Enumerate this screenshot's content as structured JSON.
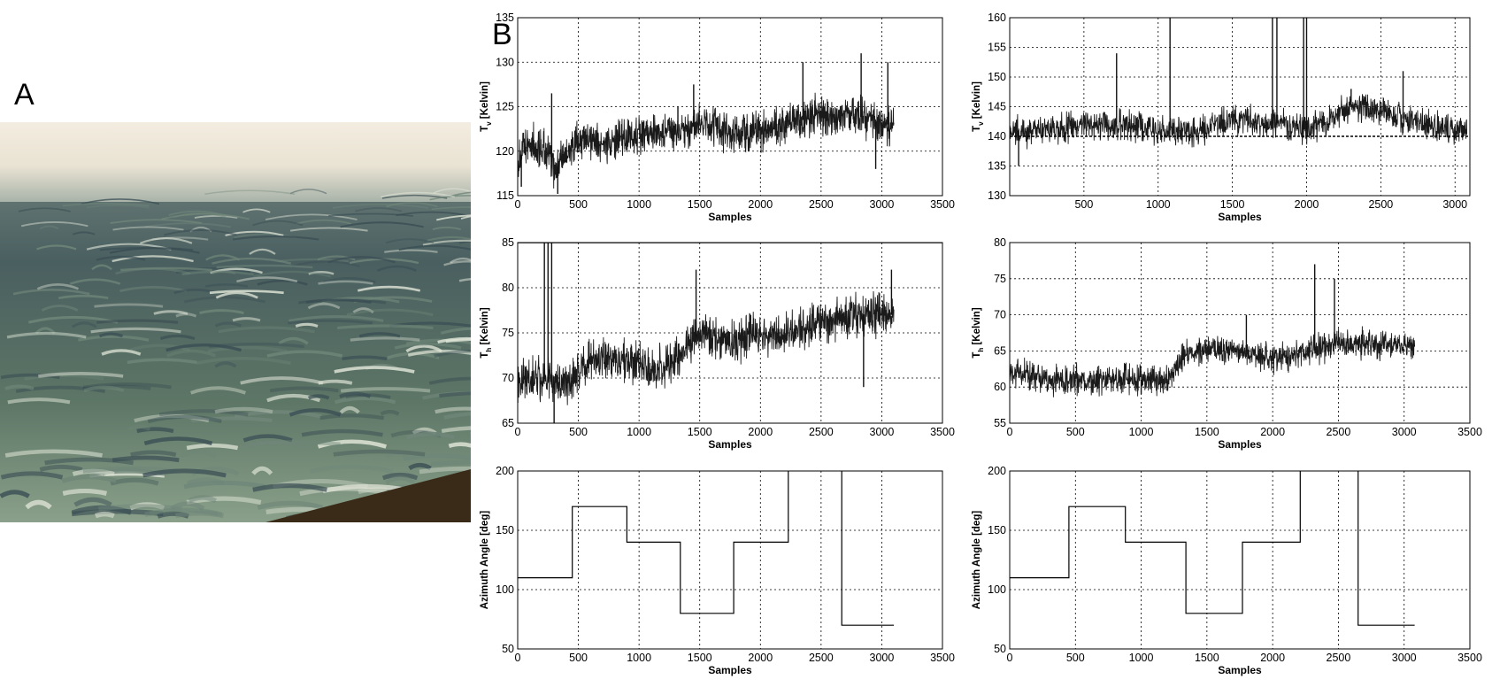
{
  "labels": {
    "panel_a": "A",
    "panel_b": "B"
  },
  "photo": {
    "sky": "#efe7dc",
    "sea_dark": "#3a4e54",
    "sea_mid": "#6f8679",
    "foam": "#dfe4d6",
    "frame": "#3a2a18"
  },
  "chart_data": [
    {
      "id": "tv-left",
      "type": "line",
      "xlabel": "Samples",
      "ylabel": "T",
      "ylabel_sub": "v",
      "ylabel_unit": " [Kelvin]",
      "xlim": [
        0,
        3500
      ],
      "ylim": [
        115,
        135
      ],
      "xticks": [
        0,
        500,
        1000,
        1500,
        2000,
        2500,
        3000,
        3500
      ],
      "yticks": [
        115,
        120,
        125,
        130,
        135
      ],
      "series": [
        {
          "kind": "noise",
          "n": 3100,
          "x_start": 0,
          "x_end": 3100,
          "amp": 1.8,
          "trend_x": [
            0,
            100,
            250,
            300,
            500,
            800,
            1000,
            1300,
            1500,
            1800,
            2000,
            2200,
            2500,
            2800,
            3000,
            3100
          ],
          "trend_y": [
            119,
            121,
            120,
            118,
            121,
            121,
            122,
            122,
            123,
            122,
            122,
            123,
            124,
            124,
            123,
            123
          ],
          "spikes": [
            [
              30,
              116
            ],
            [
              280,
              126.5
            ],
            [
              330,
              115.2
            ],
            [
              1320,
              125
            ],
            [
              1450,
              127.5
            ],
            [
              2350,
              130
            ],
            [
              2830,
              131
            ],
            [
              3050,
              130
            ],
            [
              2950,
              118
            ]
          ]
        }
      ],
      "hlines": []
    },
    {
      "id": "tv-right",
      "type": "line",
      "xlabel": "Samples",
      "ylabel": "T",
      "ylabel_sub": "v",
      "ylabel_unit": " [Kelvin]",
      "xlim": [
        0,
        3100
      ],
      "ylim": [
        130,
        160
      ],
      "xticks": [
        500,
        1000,
        1500,
        2000,
        2500,
        3000
      ],
      "yticks": [
        130,
        135,
        140,
        145,
        150,
        155,
        160
      ],
      "series": [
        {
          "kind": "noise",
          "n": 3080,
          "x_start": 0,
          "x_end": 3080,
          "amp": 2.0,
          "trend_x": [
            0,
            300,
            500,
            800,
            1000,
            1300,
            1500,
            1800,
            2000,
            2300,
            2500,
            2800,
            3000,
            3080
          ],
          "trend_y": [
            141,
            141,
            142,
            142,
            141,
            141,
            143,
            142,
            141,
            145,
            144,
            142,
            141,
            141
          ],
          "spikes": [
            [
              60,
              135
            ],
            [
              720,
              154
            ],
            [
              1080,
              160
            ],
            [
              1770,
              160
            ],
            [
              1800,
              160
            ],
            [
              1980,
              160
            ],
            [
              2000,
              160
            ],
            [
              2300,
              148
            ],
            [
              2650,
              151
            ]
          ]
        }
      ],
      "hlines": [
        140
      ]
    },
    {
      "id": "th-left",
      "type": "line",
      "xlabel": "Samples",
      "ylabel": "T",
      "ylabel_sub": "h",
      "ylabel_unit": " [Kelvin]",
      "xlim": [
        0,
        3500
      ],
      "ylim": [
        65,
        85
      ],
      "xticks": [
        0,
        500,
        1000,
        1500,
        2000,
        2500,
        3000,
        3500
      ],
      "yticks": [
        65,
        70,
        75,
        80,
        85
      ],
      "series": [
        {
          "kind": "noise",
          "n": 3100,
          "x_start": 0,
          "x_end": 3100,
          "amp": 1.8,
          "trend_x": [
            0,
            200,
            400,
            600,
            900,
            1100,
            1300,
            1500,
            1800,
            2000,
            2200,
            2500,
            2800,
            3000,
            3100
          ],
          "trend_y": [
            70,
            70,
            69,
            72,
            72,
            71,
            72,
            75,
            74,
            75,
            75,
            76,
            77,
            77,
            77
          ],
          "spikes": [
            [
              220,
              85
            ],
            [
              250,
              85
            ],
            [
              280,
              85
            ],
            [
              300,
              65
            ],
            [
              1470,
              82
            ],
            [
              2850,
              69
            ],
            [
              3080,
              82
            ]
          ]
        }
      ],
      "hlines": [
        85
      ]
    },
    {
      "id": "th-right",
      "type": "line",
      "xlabel": "Samples",
      "ylabel": "T",
      "ylabel_sub": "h",
      "ylabel_unit": " [Kelvin]",
      "xlim": [
        0,
        3500
      ],
      "ylim": [
        55,
        80
      ],
      "xticks": [
        0,
        500,
        1000,
        1500,
        2000,
        2500,
        3000,
        3500
      ],
      "yticks": [
        55,
        60,
        65,
        70,
        75,
        80
      ],
      "series": [
        {
          "kind": "noise",
          "n": 3080,
          "x_start": 0,
          "x_end": 3080,
          "amp": 1.6,
          "trend_x": [
            0,
            300,
            600,
            900,
            1200,
            1350,
            1500,
            1800,
            2000,
            2300,
            2500,
            2800,
            3080
          ],
          "trend_y": [
            62,
            61,
            61,
            61,
            61,
            65,
            65,
            65,
            64,
            65,
            66,
            66,
            66
          ],
          "spikes": [
            [
              2320,
              77
            ],
            [
              2470,
              75
            ],
            [
              1800,
              70
            ],
            [
              1000,
              59
            ]
          ]
        }
      ],
      "hlines": []
    },
    {
      "id": "az-left",
      "type": "line",
      "xlabel": "Samples",
      "ylabel": "Azimuth Angle [deg]",
      "ylabel_sub": "",
      "ylabel_unit": "",
      "xlim": [
        0,
        3500
      ],
      "ylim": [
        50,
        200
      ],
      "xticks": [
        0,
        500,
        1000,
        1500,
        2000,
        2500,
        3000,
        3500
      ],
      "yticks": [
        50,
        100,
        150,
        200
      ],
      "series": [
        {
          "kind": "step",
          "x": [
            0,
            450,
            450,
            900,
            900,
            1340,
            1340,
            1780,
            1780,
            2230,
            2230,
            2670,
            2670,
            3100
          ],
          "y": [
            110,
            110,
            170,
            170,
            140,
            140,
            80,
            80,
            140,
            140,
            200,
            200,
            70,
            70
          ],
          "gap_after_index": [
            10
          ]
        }
      ],
      "hlines": []
    },
    {
      "id": "az-right",
      "type": "line",
      "xlabel": "Samples",
      "ylabel": "Azimuth Angle [deg]",
      "ylabel_sub": "",
      "ylabel_unit": "",
      "xlim": [
        0,
        3500
      ],
      "ylim": [
        50,
        200
      ],
      "xticks": [
        0,
        500,
        1000,
        1500,
        2000,
        2500,
        3000,
        3500
      ],
      "yticks": [
        50,
        100,
        150,
        200
      ],
      "series": [
        {
          "kind": "step",
          "x": [
            0,
            450,
            450,
            880,
            880,
            1340,
            1340,
            1770,
            1770,
            2210,
            2210,
            2650,
            2650,
            3080
          ],
          "y": [
            110,
            110,
            170,
            170,
            140,
            140,
            80,
            80,
            140,
            140,
            200,
            200,
            70,
            70
          ],
          "gap_after_index": [
            10
          ]
        }
      ],
      "hlines": []
    }
  ]
}
